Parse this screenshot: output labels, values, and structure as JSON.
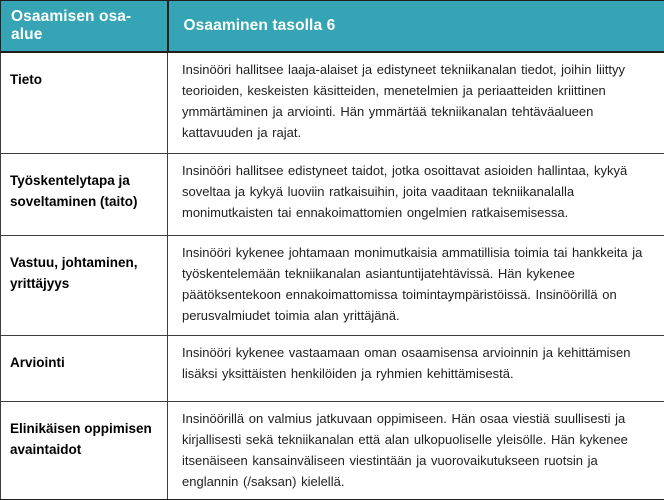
{
  "table": {
    "header": {
      "col1": "Osaamisen osa-alue",
      "col2": "Osaaminen tasolla 6"
    },
    "rows": [
      {
        "area": "Tieto",
        "description": "Insinööri hallitsee laaja-alaiset ja edistyneet tekniikanalan tiedot, joihin liittyy teorioiden, keskeisten käsitteiden, menetelmien ja periaatteiden kriittinen ymmärtäminen ja arviointi. Hän ymmärtää tekniikanalan tehtäväalueen kattavuuden ja rajat."
      },
      {
        "area": "Työskentelytapa ja soveltaminen (taito)",
        "description": "Insinööri hallitsee edistyneet taidot, jotka osoittavat asioiden hallintaa, kykyä soveltaa ja kykyä luoviin ratkaisuihin, joita vaaditaan tekniikanalalla monimutkaisten tai ennakoimattomien ongelmien ratkaisemisessa."
      },
      {
        "area": "Vastuu, johtaminen, yrittäjyys",
        "description": "Insinööri kykenee johtamaan monimutkaisia ammatillisia toimia tai hankkeita ja työskentelemään tekniikanalan asiantuntijatehtävissä. Hän kykenee päätöksentekoon ennakoimattomissa toimintaympäristöissä. Insinöörillä on perusvalmiudet toimia alan yrittäjänä."
      },
      {
        "area": "Arviointi",
        "description": "Insinööri kykenee vastaamaan oman osaamisensa arvioinnin ja kehittämisen lisäksi yksittäisten henkilöiden ja ryhmien kehittämisestä."
      },
      {
        "area": "Elinikäisen oppimisen avaintaidot",
        "description": "Insinöörillä on valmius jatkuvaan oppimiseen. Hän osaa viestiä suullisesti ja kirjallisesti sekä tekniikanalan että alan ulkopuoliselle yleisölle. Hän kykenee itsenäiseen kansainväliseen viestintään ja vuorovaikutukseen ruotsin ja englannin (/saksan) kielellä."
      }
    ]
  },
  "colors": {
    "header_bg": "#35a4b4",
    "header_text": "#ffffff",
    "border_dark": "#1f1f1f",
    "body_text": "#212121"
  }
}
